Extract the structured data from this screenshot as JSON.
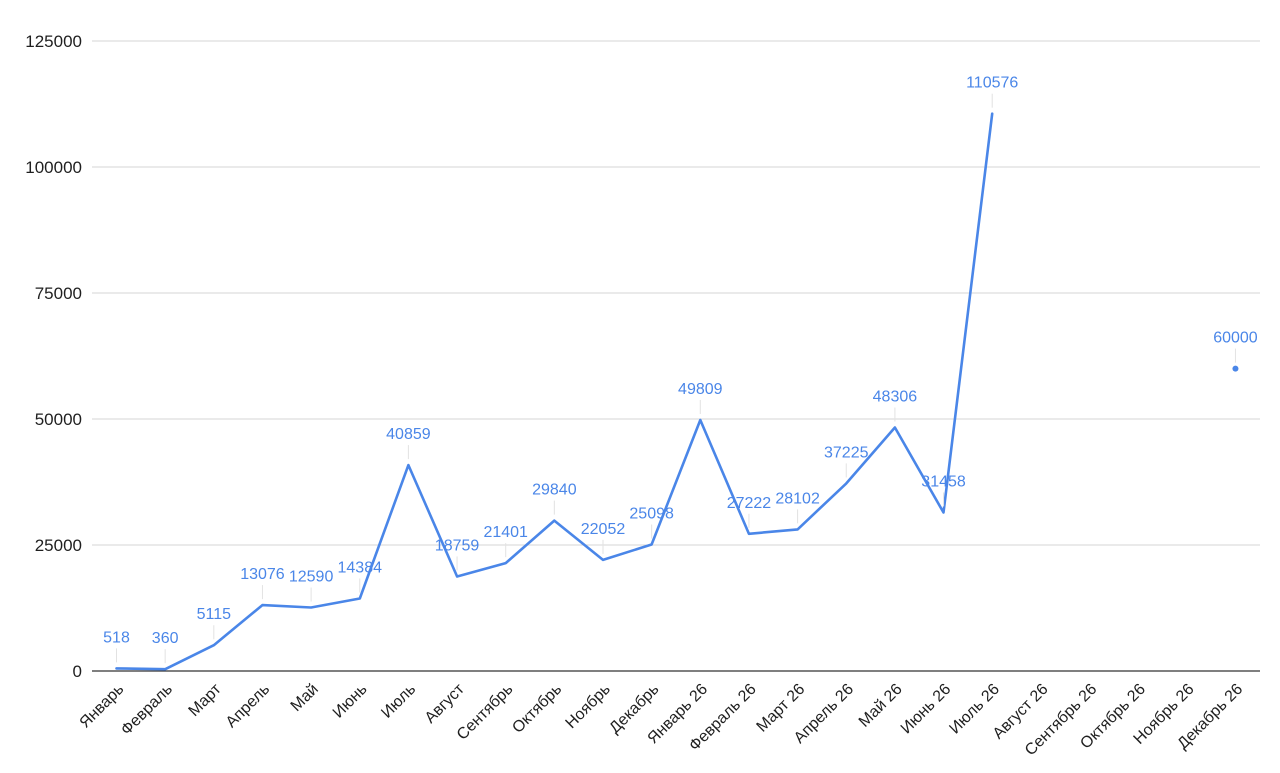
{
  "chart_data": {
    "type": "line",
    "title": "",
    "xlabel": "",
    "ylabel": "",
    "ylim": [
      0,
      125000
    ],
    "yticks": [
      "0",
      "25000",
      "50000",
      "75000",
      "100000",
      "125000"
    ],
    "grid": true,
    "legend": "none",
    "line_color": "#4a86e8",
    "categories": [
      "Январь",
      "Февраль",
      "Март",
      "Апрель",
      "Май",
      "Июнь",
      "Июль",
      "Август",
      "Сентябрь",
      "Октябрь",
      "Ноябрь",
      "Декабрь",
      "Январь 26",
      "Февраль 26",
      "Март 26",
      "Апрель 26",
      "Май 26",
      "Июнь 26",
      "Июль 26",
      "Август 26",
      "Сентябрь 26",
      "Октябрь 26",
      "Ноябрь 26",
      "Декабрь 26"
    ],
    "series": [
      {
        "values": [
          518,
          360,
          5115,
          13076,
          12590,
          14384,
          40859,
          18759,
          21401,
          29840,
          22052,
          25098,
          49809,
          27222,
          28102,
          37225,
          48306,
          31458,
          110576,
          null,
          null,
          null,
          null,
          60000
        ],
        "labels": [
          "518",
          "360",
          "5115",
          "13076",
          "12590",
          "14384",
          "40859",
          "18759",
          "21401",
          "29840",
          "22052",
          "25098",
          "49809",
          "27222",
          "28102",
          "37225",
          "48306",
          "31458",
          "110576",
          "",
          "",
          "",
          "",
          "60000"
        ]
      }
    ]
  }
}
